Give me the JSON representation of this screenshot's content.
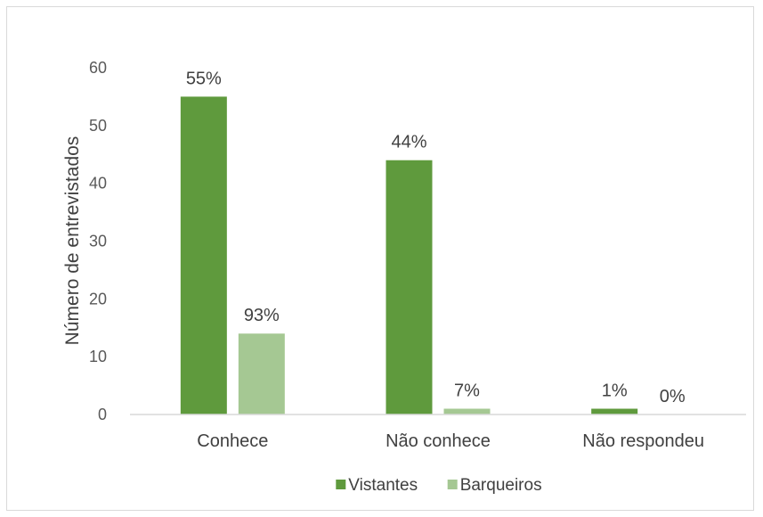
{
  "chart_data": {
    "type": "bar",
    "ylabel": "Número de entrevistados",
    "ylim": [
      0,
      60
    ],
    "yticks": [
      "0",
      "10",
      "20",
      "30",
      "40",
      "50",
      "60"
    ],
    "grid": false,
    "legend_position": "bottom",
    "categories": [
      "Conhece",
      "Não conhece",
      "Não respondeu"
    ],
    "series": [
      {
        "name": "Vistantes",
        "values": [
          55,
          44,
          1
        ],
        "labels": [
          "55%",
          "44%",
          "1%"
        ],
        "color": "#5f9a3d"
      },
      {
        "name": "Barqueiros",
        "values": [
          14,
          1,
          0
        ],
        "labels": [
          "93%",
          "7%",
          "0%"
        ],
        "color": "#a5c893"
      }
    ]
  }
}
